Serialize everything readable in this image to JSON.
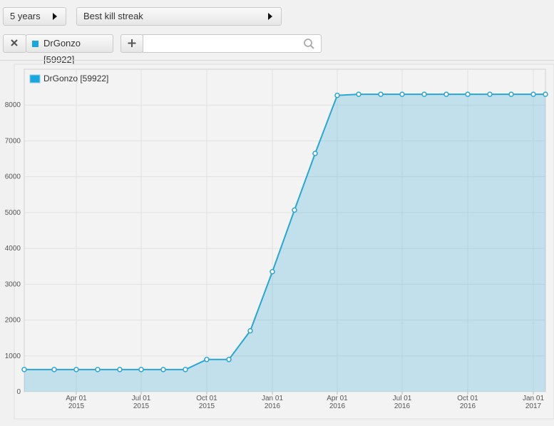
{
  "controls": {
    "period": "5 years",
    "metric": "Best kill streak",
    "player": "DrGonzo [59922]"
  },
  "chart_data": {
    "type": "area",
    "x": [
      "2015-01-18",
      "2015-03-01",
      "2015-04-01",
      "2015-05-01",
      "2015-06-01",
      "2015-07-01",
      "2015-08-01",
      "2015-09-01",
      "2015-10-01",
      "2015-11-01",
      "2015-12-01",
      "2016-01-01",
      "2016-02-01",
      "2016-03-01",
      "2016-04-01",
      "2016-05-01",
      "2016-06-01",
      "2016-07-01",
      "2016-08-01",
      "2016-09-01",
      "2016-10-01",
      "2016-11-01",
      "2016-12-01",
      "2017-01-01",
      "2017-01-18"
    ],
    "series": [
      {
        "name": "DrGonzo [59922]",
        "color": "#2ba6d2",
        "values": [
          620,
          620,
          620,
          620,
          620,
          620,
          620,
          620,
          900,
          900,
          1700,
          3350,
          5070,
          6650,
          8270,
          8300,
          8300,
          8300,
          8300,
          8300,
          8300,
          8300,
          8300,
          8300,
          8300
        ]
      }
    ],
    "xlim": [
      "2015-01-18",
      "2017-01-18"
    ],
    "xticks": [
      {
        "value": "2015-04-01",
        "label": [
          "Apr 01",
          "2015"
        ]
      },
      {
        "value": "2015-07-01",
        "label": [
          "Jul 01",
          "2015"
        ]
      },
      {
        "value": "2015-10-01",
        "label": [
          "Oct 01",
          "2015"
        ]
      },
      {
        "value": "2016-01-01",
        "label": [
          "Jan 01",
          "2016"
        ]
      },
      {
        "value": "2016-04-01",
        "label": [
          "Apr 01",
          "2016"
        ]
      },
      {
        "value": "2016-07-01",
        "label": [
          "Jul 01",
          "2016"
        ]
      },
      {
        "value": "2016-10-01",
        "label": [
          "Oct 01",
          "2016"
        ]
      },
      {
        "value": "2017-01-01",
        "label": [
          "Jan 01",
          "2017"
        ]
      }
    ],
    "ylim": [
      0,
      9000
    ],
    "yticks": [
      0,
      1000,
      2000,
      3000,
      4000,
      5000,
      6000,
      7000,
      8000
    ],
    "grid": true,
    "legend": "top-left"
  }
}
